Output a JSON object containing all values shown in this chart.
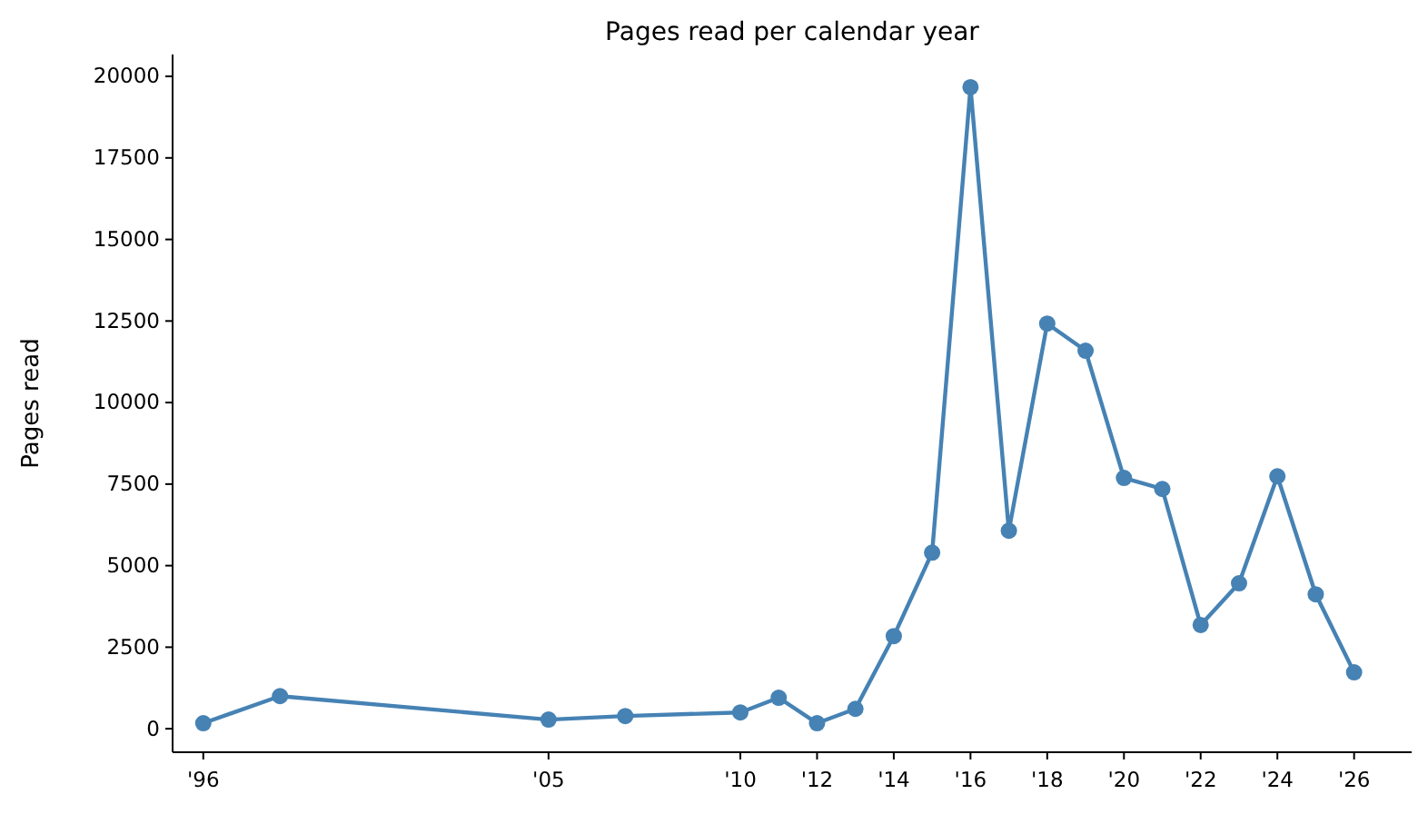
{
  "chart_data": {
    "type": "line",
    "title": "Pages read per calendar year",
    "ylabel": "Pages read",
    "x": [
      1996,
      1998,
      2005,
      2007,
      2010,
      2011,
      2012,
      2013,
      2014,
      2015,
      2016,
      2017,
      2018,
      2019,
      2020,
      2021,
      2022,
      2023,
      2024,
      2025,
      2026
    ],
    "series": [
      {
        "color": "#4682b4",
        "values": [
          170,
          1000,
          280,
          390,
          500,
          950,
          170,
          610,
          2840,
          5400,
          19670,
          6070,
          12420,
          11590,
          7690,
          7350,
          3180,
          4460,
          7740,
          4120,
          1730
        ]
      }
    ],
    "xlim": [
      1995.2,
      2027.5
    ],
    "xticks": [
      {
        "value": 1996,
        "label": "'96"
      },
      {
        "value": 2005,
        "label": "'05"
      },
      {
        "value": 2010,
        "label": "'10"
      },
      {
        "value": 2012,
        "label": "'12"
      },
      {
        "value": 2014,
        "label": "'14"
      },
      {
        "value": 2016,
        "label": "'16"
      },
      {
        "value": 2018,
        "label": "'18"
      },
      {
        "value": 2020,
        "label": "'20"
      },
      {
        "value": 2022,
        "label": "'22"
      },
      {
        "value": 2024,
        "label": "'24"
      },
      {
        "value": 2026,
        "label": "'26"
      }
    ],
    "ylim": [
      -720,
      20670
    ],
    "yticks": [
      0,
      2500,
      5000,
      7500,
      10000,
      12500,
      15000,
      17500,
      20000
    ],
    "marker": "circle",
    "line_style": "solid",
    "grid": false
  }
}
